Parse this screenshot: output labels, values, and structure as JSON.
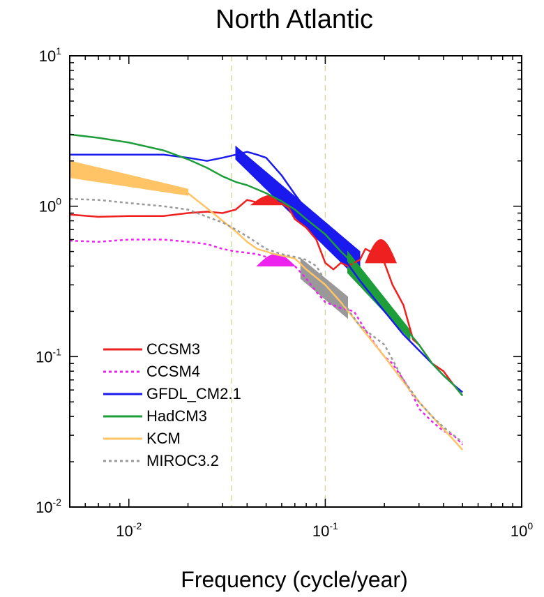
{
  "chart_data": {
    "type": "line",
    "title": "North Atlantic",
    "xlabel": "Frequency (cycle/year)",
    "ylabel": "",
    "xscale": "log",
    "yscale": "log",
    "xlim": [
      0.005,
      1
    ],
    "ylim": [
      0.01,
      10
    ],
    "x_tick_labels": [
      {
        "value": 0.01,
        "base": "10",
        "exp": "-2"
      },
      {
        "value": 0.1,
        "base": "10",
        "exp": "-1"
      },
      {
        "value": 1,
        "base": "10",
        "exp": "0"
      }
    ],
    "y_tick_labels": [
      {
        "value": 0.01,
        "base": "10",
        "exp": "-2"
      },
      {
        "value": 0.1,
        "base": "10",
        "exp": "-1"
      },
      {
        "value": 1,
        "base": "10",
        "exp": "0"
      },
      {
        "value": 10,
        "base": "10",
        "exp": "1"
      }
    ],
    "reference_lines_x": [
      0.0333,
      0.1
    ],
    "reference_line_color": "#d8d8a0",
    "legend_position": "bottom-left",
    "series": [
      {
        "name": "CCSM3",
        "color": "#ee2020",
        "dash": "solid",
        "x": [
          0.005,
          0.007,
          0.01,
          0.015,
          0.02,
          0.025,
          0.03,
          0.035,
          0.04,
          0.045,
          0.05,
          0.055,
          0.06,
          0.065,
          0.07,
          0.08,
          0.09,
          0.1,
          0.11,
          0.12,
          0.13,
          0.14,
          0.15,
          0.16,
          0.17,
          0.18,
          0.2,
          0.22,
          0.25,
          0.28,
          0.3,
          0.35,
          0.4,
          0.45,
          0.5
        ],
        "y": [
          0.88,
          0.85,
          0.86,
          0.86,
          0.9,
          0.92,
          0.9,
          0.95,
          1.1,
          1.06,
          1.06,
          1.08,
          1.04,
          0.98,
          0.82,
          0.72,
          0.6,
          0.42,
          0.38,
          0.42,
          0.4,
          0.42,
          0.44,
          0.52,
          0.5,
          0.48,
          0.42,
          0.3,
          0.22,
          0.13,
          0.12,
          0.09,
          0.08,
          0.065,
          0.055
        ],
        "band": [
          {
            "x0": 0.042,
            "x1": 0.066,
            "peak": 1.18,
            "base": 1.02
          },
          {
            "x0": 0.16,
            "x1": 0.23,
            "peak": 0.6,
            "base": 0.42
          }
        ]
      },
      {
        "name": "CCSM4",
        "color": "#ee22ee",
        "dash": "dashed",
        "x": [
          0.005,
          0.007,
          0.01,
          0.015,
          0.02,
          0.025,
          0.03,
          0.035,
          0.04,
          0.045,
          0.05,
          0.055,
          0.06,
          0.065,
          0.07,
          0.08,
          0.09,
          0.1,
          0.11,
          0.12,
          0.14,
          0.16,
          0.18,
          0.2,
          0.22,
          0.25,
          0.28,
          0.3,
          0.35,
          0.4,
          0.45,
          0.5
        ],
        "y": [
          0.59,
          0.58,
          0.6,
          0.6,
          0.58,
          0.56,
          0.52,
          0.5,
          0.49,
          0.48,
          0.46,
          0.44,
          0.42,
          0.41,
          0.4,
          0.33,
          0.27,
          0.23,
          0.22,
          0.21,
          0.2,
          0.15,
          0.12,
          0.1,
          0.09,
          0.07,
          0.055,
          0.045,
          0.037,
          0.032,
          0.03,
          0.026
        ],
        "band": [
          {
            "x0": 0.045,
            "x1": 0.07,
            "peak": 0.48,
            "base": 0.4
          }
        ]
      },
      {
        "name": "GFDL_CM2.1",
        "color": "#1a1aee",
        "dash": "solid",
        "x": [
          0.005,
          0.007,
          0.01,
          0.015,
          0.02,
          0.025,
          0.03,
          0.035,
          0.04,
          0.045,
          0.05,
          0.06,
          0.07,
          0.08,
          0.1,
          0.12,
          0.15,
          0.2,
          0.25,
          0.3,
          0.35,
          0.4,
          0.45,
          0.5
        ],
        "y": [
          2.2,
          2.2,
          2.2,
          2.2,
          2.1,
          2.0,
          2.1,
          2.2,
          2.3,
          2.2,
          2.1,
          1.6,
          1.2,
          0.95,
          0.65,
          0.48,
          0.32,
          0.2,
          0.14,
          0.11,
          0.09,
          0.075,
          0.065,
          0.058
        ],
        "band": [
          {
            "x0": 0.035,
            "x1": 0.15,
            "peak": 2.5,
            "base": 2.05,
            "peak_end": 0.5,
            "base_end": 0.32
          }
        ]
      },
      {
        "name": "HadCM3",
        "color": "#1e9e3a",
        "dash": "solid",
        "x": [
          0.005,
          0.007,
          0.01,
          0.015,
          0.02,
          0.025,
          0.03,
          0.035,
          0.04,
          0.05,
          0.06,
          0.07,
          0.08,
          0.1,
          0.12,
          0.15,
          0.2,
          0.25,
          0.3,
          0.35,
          0.4,
          0.45,
          0.5
        ],
        "y": [
          3.0,
          2.85,
          2.65,
          2.35,
          2.05,
          1.8,
          1.58,
          1.45,
          1.38,
          1.22,
          1.08,
          0.95,
          0.82,
          0.65,
          0.5,
          0.38,
          0.24,
          0.16,
          0.12,
          0.09,
          0.075,
          0.065,
          0.055
        ],
        "band": [
          {
            "x0": 0.13,
            "x1": 0.27,
            "peak": 0.5,
            "base": 0.36,
            "peak_end": 0.15,
            "base_end": 0.13
          }
        ]
      },
      {
        "name": "KCM",
        "color": "#ffc466",
        "dash": "solid",
        "x": [
          0.005,
          0.007,
          0.01,
          0.015,
          0.02,
          0.025,
          0.03,
          0.035,
          0.04,
          0.045,
          0.05,
          0.055,
          0.06,
          0.07,
          0.08,
          0.1,
          0.12,
          0.15,
          0.2,
          0.25,
          0.3,
          0.35,
          0.4,
          0.45,
          0.5
        ],
        "y": [
          1.65,
          1.6,
          1.52,
          1.38,
          1.22,
          0.97,
          0.8,
          0.68,
          0.58,
          0.52,
          0.5,
          0.48,
          0.47,
          0.45,
          0.38,
          0.3,
          0.23,
          0.16,
          0.1,
          0.068,
          0.05,
          0.04,
          0.033,
          0.028,
          0.024
        ],
        "band": [
          {
            "x0": 0.005,
            "x1": 0.02,
            "peak": 2.0,
            "base": 1.55,
            "peak_end": 1.3,
            "base_end": 1.18
          }
        ]
      },
      {
        "name": "MIROC3.2",
        "color": "#999999",
        "dash": "dashed",
        "x": [
          0.005,
          0.007,
          0.01,
          0.015,
          0.02,
          0.025,
          0.03,
          0.035,
          0.04,
          0.045,
          0.05,
          0.06,
          0.07,
          0.08,
          0.09,
          0.1,
          0.12,
          0.15,
          0.2,
          0.25,
          0.3,
          0.35,
          0.4,
          0.45,
          0.5
        ],
        "y": [
          1.12,
          1.1,
          1.05,
          1.0,
          0.95,
          0.85,
          0.78,
          0.7,
          0.63,
          0.57,
          0.52,
          0.48,
          0.46,
          0.44,
          0.4,
          0.32,
          0.24,
          0.16,
          0.12,
          0.07,
          0.05,
          0.04,
          0.034,
          0.03,
          0.027
        ],
        "band": [
          {
            "x0": 0.075,
            "x1": 0.13,
            "peak": 0.45,
            "base": 0.33,
            "peak_end": 0.25,
            "base_end": 0.18
          }
        ]
      }
    ]
  }
}
